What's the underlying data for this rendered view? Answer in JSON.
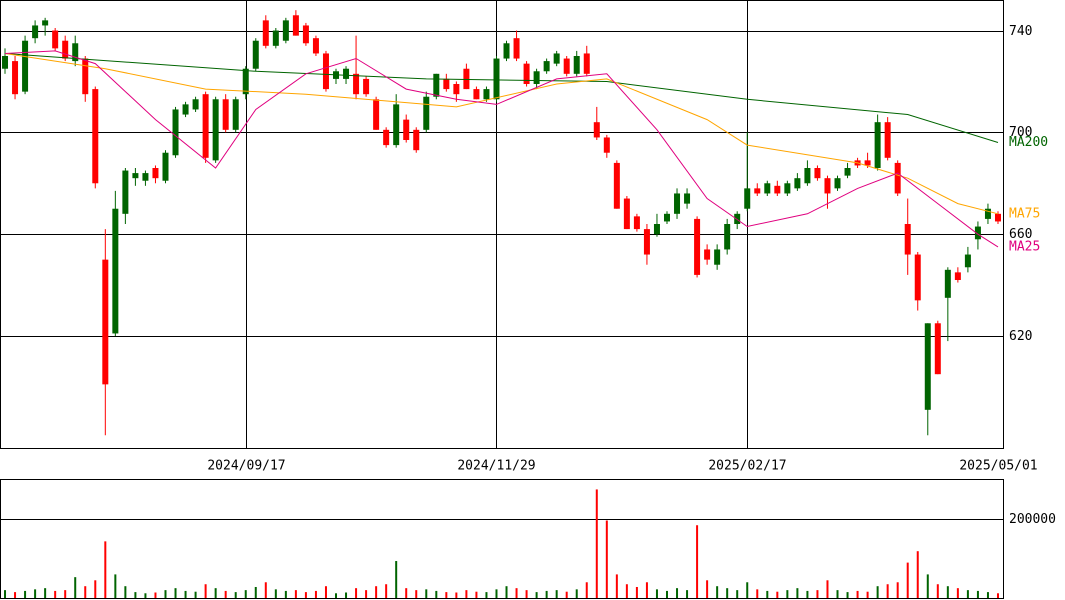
{
  "chart_data": {
    "type": "candlestick",
    "categories": [
      null,
      null,
      null,
      null,
      null,
      null,
      null,
      null,
      null,
      null,
      null,
      null,
      null,
      null,
      null,
      null,
      null,
      null,
      null,
      null,
      null,
      null,
      null,
      null,
      "2024/09/17",
      null,
      null,
      null,
      null,
      null,
      null,
      null,
      null,
      null,
      null,
      null,
      null,
      null,
      null,
      null,
      null,
      null,
      null,
      null,
      null,
      null,
      null,
      null,
      null,
      "2024/11/29",
      null,
      null,
      null,
      null,
      null,
      null,
      null,
      null,
      null,
      null,
      null,
      null,
      null,
      null,
      null,
      null,
      null,
      null,
      null,
      null,
      null,
      null,
      null,
      null,
      "2025/02/17",
      null,
      null,
      null,
      null,
      null,
      null,
      null,
      null,
      null,
      null,
      null,
      null,
      null,
      null,
      null,
      null,
      null,
      null,
      null,
      null,
      null,
      null,
      null,
      null,
      "2025/05/01"
    ],
    "open": [
      725,
      728,
      716,
      737,
      742,
      740,
      736,
      728,
      729,
      717,
      650,
      621,
      668,
      682,
      681,
      686,
      681,
      691,
      707,
      709,
      715,
      689,
      713,
      701,
      715,
      725,
      744,
      734,
      736,
      746,
      742,
      737,
      731,
      721,
      721,
      723,
      721,
      713,
      701,
      695,
      705,
      701,
      701,
      714,
      721,
      719,
      725,
      717,
      713,
      713,
      729,
      737,
      727,
      719,
      724,
      727,
      729,
      723,
      731,
      704,
      698,
      688,
      674,
      667,
      662,
      660,
      665,
      668,
      672,
      666,
      654,
      648,
      654,
      664,
      670,
      678,
      676,
      679,
      676,
      678,
      680,
      686,
      682,
      678,
      683,
      689,
      689,
      686,
      704,
      688,
      664,
      652,
      591,
      625,
      635,
      645,
      647,
      658,
      666,
      668
    ],
    "high": [
      733,
      730,
      738,
      744,
      745,
      741,
      738,
      738,
      730,
      718,
      662,
      677,
      686,
      686,
      685,
      687,
      693,
      710,
      712,
      714,
      716,
      714,
      715,
      714,
      726,
      737,
      746,
      741,
      745,
      748,
      743,
      738,
      732,
      725,
      726,
      738,
      722,
      714,
      702,
      715,
      707,
      702,
      716,
      723,
      723,
      720,
      727,
      718,
      718,
      730,
      736,
      740,
      728,
      725,
      729,
      732,
      730,
      732,
      734,
      710,
      699,
      689,
      675,
      668,
      664,
      668,
      669,
      678,
      678,
      667,
      656,
      656,
      666,
      669,
      700,
      680,
      681,
      681,
      681,
      684,
      689,
      687,
      683,
      683,
      688,
      690,
      692,
      707,
      706,
      689,
      674,
      653,
      625,
      626,
      647,
      647,
      655,
      665,
      672,
      669
    ],
    "low": [
      723,
      713,
      715,
      735,
      738,
      732,
      728,
      726,
      712,
      678,
      581,
      620,
      664,
      679,
      679,
      680,
      680,
      690,
      706,
      708,
      688,
      688,
      700,
      700,
      713,
      724,
      733,
      733,
      735,
      738,
      734,
      730,
      716,
      719,
      719,
      713,
      714,
      701,
      694,
      694,
      696,
      692,
      700,
      713,
      716,
      712,
      717,
      713,
      712,
      712,
      728,
      728,
      718,
      717,
      723,
      726,
      722,
      722,
      722,
      697,
      690,
      670,
      662,
      661,
      648,
      659,
      664,
      666,
      670,
      643,
      648,
      646,
      652,
      662,
      669,
      675,
      675,
      675,
      675,
      677,
      679,
      681,
      670,
      677,
      682,
      686,
      686,
      685,
      689,
      675,
      644,
      630,
      581,
      605,
      618,
      641,
      645,
      654,
      664,
      664
    ],
    "close": [
      730,
      715,
      736,
      742,
      744,
      733,
      729,
      735,
      715,
      680,
      601,
      670,
      685,
      684,
      684,
      682,
      692,
      709,
      711,
      713,
      690,
      713,
      701,
      713,
      725,
      736,
      734,
      740,
      744,
      738,
      735,
      731,
      717,
      724,
      725,
      715,
      715,
      701,
      695,
      711,
      697,
      693,
      714,
      723,
      717,
      715,
      717,
      713,
      717,
      729,
      735,
      729,
      719,
      724,
      728,
      731,
      723,
      730,
      723,
      698,
      692,
      670,
      662,
      662,
      652,
      664,
      668,
      676,
      676,
      644,
      650,
      654,
      664,
      668,
      678,
      676,
      680,
      676,
      680,
      682,
      686,
      682,
      676,
      682,
      686,
      687,
      687,
      704,
      690,
      676,
      652,
      634,
      625,
      605,
      646,
      642,
      652,
      663,
      670,
      665
    ],
    "up_color": "#006400",
    "down_color": "#ff0000",
    "ylim": [
      576,
      752
    ],
    "yticks": [
      620,
      660,
      700,
      740
    ],
    "grid": true,
    "series": [
      {
        "name": "MA200",
        "color": "#006400",
        "x": [
          0,
          25,
          42,
          60,
          74,
          90,
          99
        ],
        "values": [
          731,
          724,
          721,
          720,
          713,
          707,
          696
        ]
      },
      {
        "name": "MA75",
        "color": "#ffa500",
        "x": [
          0,
          10,
          20,
          30,
          45,
          55,
          60,
          70,
          74,
          85,
          90,
          95,
          99
        ],
        "values": [
          731,
          725,
          717,
          715,
          710,
          719,
          721,
          705,
          695,
          688,
          682,
          672,
          668
        ]
      },
      {
        "name": "MA25",
        "color": "#e0007f",
        "x": [
          0,
          5,
          9,
          15,
          21,
          25,
          30,
          35,
          40,
          45,
          49,
          55,
          60,
          65,
          70,
          74,
          80,
          85,
          89,
          93,
          97,
          99
        ],
        "values": [
          731,
          732,
          727,
          705,
          686,
          709,
          723,
          729,
          717,
          713,
          711,
          721,
          723,
          701,
          674,
          663,
          668,
          678,
          684,
          672,
          660,
          655
        ]
      }
    ],
    "volume": {
      "ylim": [
        0,
        300000
      ],
      "yticks": [
        200000
      ],
      "values": [
        20000,
        15000,
        18000,
        22000,
        25000,
        18000,
        20000,
        53000,
        30000,
        45000,
        144000,
        60000,
        30000,
        15000,
        12000,
        14000,
        20000,
        25000,
        18000,
        16000,
        35000,
        25000,
        18000,
        15000,
        20000,
        28000,
        40000,
        22000,
        18000,
        20000,
        15000,
        18000,
        30000,
        12000,
        14000,
        25000,
        20000,
        30000,
        35000,
        94000,
        25000,
        20000,
        22000,
        18000,
        15000,
        14000,
        20000,
        16000,
        15000,
        22000,
        30000,
        25000,
        20000,
        15000,
        18000,
        20000,
        16000,
        22000,
        40000,
        276000,
        197000,
        60000,
        35000,
        28000,
        40000,
        22000,
        18000,
        25000,
        20000,
        185000,
        45000,
        30000,
        25000,
        20000,
        40000,
        22000,
        18000,
        16000,
        20000,
        25000,
        18000,
        20000,
        45000,
        20000,
        15000,
        18000,
        16000,
        30000,
        35000,
        40000,
        90000,
        119000,
        60000,
        35000,
        30000,
        25000,
        20000,
        18000,
        15000,
        12000
      ]
    }
  }
}
